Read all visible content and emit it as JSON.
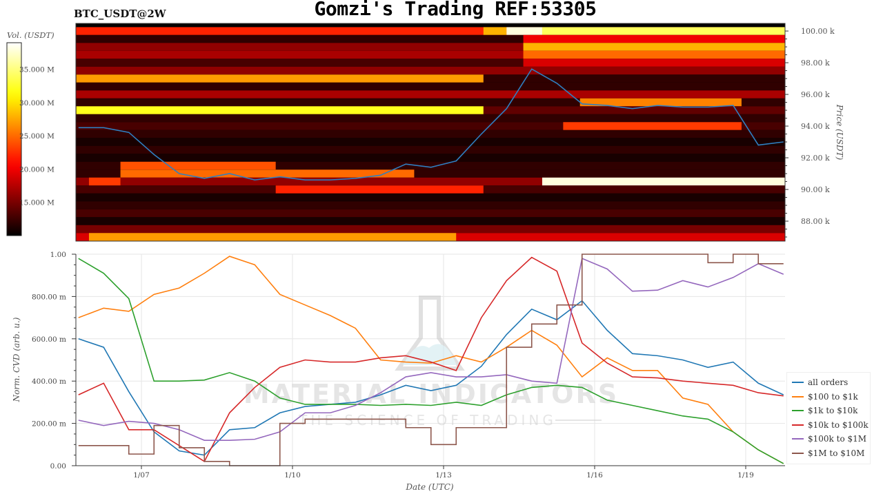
{
  "title": "Gomzi's Trading REF:53305",
  "subtitle": "BTC_USDT@2W",
  "watermark": {
    "line1": "MATERIAL INDICATORS",
    "line2": "THE SCIENCE OF TRADING"
  },
  "chart_data": [
    {
      "type": "heatmap",
      "name": "orderbook-liquidity-heatmap",
      "ylabel": "Price (USDT)",
      "colorbar_label": "Vol. (USDT)",
      "colormap": "hot",
      "color_range_M": [
        10,
        39
      ],
      "colorbar_ticks": [
        "15.000 M",
        "20.000 M",
        "25.000 M",
        "30.000 M",
        "35.000 M"
      ],
      "colorbar_tick_values_M": [
        15,
        20,
        25,
        30,
        35
      ],
      "y_ticks": [
        "88.00 k",
        "90.00 k",
        "92.00 k",
        "94.00 k",
        "96.00 k",
        "98.00 k",
        "100.00 k"
      ],
      "y_tick_values_k": [
        88,
        90,
        92,
        94,
        96,
        98,
        100
      ],
      "ylim_k": [
        86.74,
        100.48
      ],
      "xlim": [
        "01-05 17:00",
        "01-19 20:00"
      ],
      "row_step_k": 0.5,
      "rows": [
        {
          "price_k": 100.0,
          "default_M": 22,
          "segments": [
            [
              "01-13 19:00",
              "01-14 06:00",
              28
            ],
            [
              "01-14 06:00",
              "01-14 23:00",
              38
            ],
            [
              "01-14 23:00",
              "01-19 20:00",
              34
            ]
          ]
        },
        {
          "price_k": 99.5,
          "default_M": 12,
          "segments": [
            [
              "01-14 14:00",
              "01-19 20:00",
              20
            ]
          ]
        },
        {
          "price_k": 99.0,
          "default_M": 16,
          "segments": [
            [
              "01-14 14:00",
              "01-19 20:00",
              28
            ]
          ]
        },
        {
          "price_k": 98.5,
          "default_M": 17,
          "segments": [
            [
              "01-14 14:00",
              "01-19 20:00",
              25
            ]
          ]
        },
        {
          "price_k": 98.0,
          "default_M": 13,
          "segments": [
            [
              "01-14 14:00",
              "01-19 20:00",
              19
            ]
          ]
        },
        {
          "price_k": 97.5,
          "default_M": 16,
          "segments": []
        },
        {
          "price_k": 97.0,
          "default_M": 12,
          "segments": [
            [
              "01-05 17:00",
              "01-13 19:00",
              27
            ]
          ]
        },
        {
          "price_k": 96.5,
          "default_M": 12,
          "segments": []
        },
        {
          "price_k": 96.0,
          "default_M": 17,
          "segments": []
        },
        {
          "price_k": 95.5,
          "default_M": 12,
          "segments": [
            [
              "01-15 17:00",
              "01-18 22:00",
              26
            ]
          ]
        },
        {
          "price_k": 95.0,
          "default_M": 14,
          "segments": [
            [
              "01-05 17:00",
              "01-13 19:00",
              32
            ]
          ]
        },
        {
          "price_k": 94.5,
          "default_M": 12,
          "segments": []
        },
        {
          "price_k": 94.0,
          "default_M": 13,
          "segments": [
            [
              "01-15 09:00",
              "01-18 22:00",
              23
            ]
          ]
        },
        {
          "price_k": 93.5,
          "default_M": 12,
          "segments": []
        },
        {
          "price_k": 93.0,
          "default_M": 11,
          "segments": []
        },
        {
          "price_k": 92.5,
          "default_M": 12,
          "segments": []
        },
        {
          "price_k": 92.0,
          "default_M": 11,
          "segments": []
        },
        {
          "price_k": 91.5,
          "default_M": 12,
          "segments": [
            [
              "01-06 14:00",
              "01-09 16:00",
              24
            ]
          ]
        },
        {
          "price_k": 91.0,
          "default_M": 12,
          "segments": [
            [
              "01-06 14:00",
              "01-12 10:00",
              25
            ]
          ]
        },
        {
          "price_k": 90.5,
          "default_M": 16,
          "segments": [
            [
              "01-05 23:00",
              "01-06 14:00",
              23
            ],
            [
              "01-14 23:00",
              "01-19 20:00",
              38
            ]
          ]
        },
        {
          "price_k": 90.0,
          "default_M": 13,
          "segments": [
            [
              "01-09 16:00",
              "01-13 19:00",
              22
            ]
          ]
        },
        {
          "price_k": 89.5,
          "default_M": 11,
          "segments": []
        },
        {
          "price_k": 89.0,
          "default_M": 12,
          "segments": []
        },
        {
          "price_k": 88.5,
          "default_M": 13,
          "segments": []
        },
        {
          "price_k": 88.0,
          "default_M": 11,
          "segments": []
        },
        {
          "price_k": 87.5,
          "default_M": 15,
          "segments": []
        },
        {
          "price_k": 87.0,
          "default_M": 19,
          "segments": [
            [
              "01-05 23:00",
              "01-13 06:00",
              27
            ]
          ]
        }
      ],
      "price_series": {
        "color": "#2f7fc1",
        "x": [
          "01-05 18:00",
          "01-06 06:00",
          "01-06 18:00",
          "01-07 06:00",
          "01-07 18:00",
          "01-08 06:00",
          "01-08 18:00",
          "01-09 06:00",
          "01-09 18:00",
          "01-10 06:00",
          "01-10 18:00",
          "01-11 06:00",
          "01-11 18:00",
          "01-12 06:00",
          "01-12 18:00",
          "01-13 06:00",
          "01-13 18:00",
          "01-14 06:00",
          "01-14 18:00",
          "01-15 06:00",
          "01-15 18:00",
          "01-16 06:00",
          "01-16 18:00",
          "01-17 06:00",
          "01-17 18:00",
          "01-18 06:00",
          "01-18 18:00",
          "01-19 06:00",
          "01-19 18:00"
        ],
        "y_k": [
          93.9,
          93.9,
          93.6,
          92.2,
          91.0,
          90.7,
          91.0,
          90.6,
          90.8,
          90.6,
          90.6,
          90.7,
          90.9,
          91.6,
          91.4,
          91.8,
          93.5,
          95.1,
          97.6,
          96.7,
          95.4,
          95.3,
          95.1,
          95.3,
          95.2,
          95.2,
          95.3,
          92.8,
          93.0
        ]
      }
    },
    {
      "type": "line",
      "name": "normalized-cvd",
      "xlabel": "Date (UTC)",
      "ylabel": "Norm. CVD (arb. u.)",
      "ylim": [
        0,
        1
      ],
      "xlim": [
        "01-05 17:00",
        "01-19 20:00"
      ],
      "grid": true,
      "legend_placement": "right",
      "x_ticks": [
        "1/07",
        "1/10",
        "1/13",
        "1/16",
        "1/19"
      ],
      "x_tick_dates": [
        "01-07 00:00",
        "01-10 00:00",
        "01-13 00:00",
        "01-16 00:00",
        "01-19 00:00"
      ],
      "y_ticks": [
        "0.00",
        "200.00 m",
        "400.00 m",
        "600.00 m",
        "800.00 m",
        "1.00"
      ],
      "y_tick_values": [
        0,
        0.2,
        0.4,
        0.6,
        0.8,
        1.0
      ],
      "x": [
        "01-05 18:00",
        "01-06 06:00",
        "01-06 18:00",
        "01-07 06:00",
        "01-07 18:00",
        "01-08 06:00",
        "01-08 18:00",
        "01-09 06:00",
        "01-09 18:00",
        "01-10 06:00",
        "01-10 18:00",
        "01-11 06:00",
        "01-11 18:00",
        "01-12 06:00",
        "01-12 18:00",
        "01-13 06:00",
        "01-13 18:00",
        "01-14 06:00",
        "01-14 18:00",
        "01-15 06:00",
        "01-15 18:00",
        "01-16 06:00",
        "01-16 18:00",
        "01-17 06:00",
        "01-17 18:00",
        "01-18 06:00",
        "01-18 18:00",
        "01-19 06:00",
        "01-19 18:00"
      ],
      "series": [
        {
          "name": "all orders",
          "color": "#1f77b4",
          "step": false,
          "values": [
            0.6,
            0.56,
            0.35,
            0.16,
            0.07,
            0.05,
            0.17,
            0.18,
            0.25,
            0.28,
            0.29,
            0.3,
            0.335,
            0.38,
            0.355,
            0.38,
            0.47,
            0.62,
            0.74,
            0.69,
            0.78,
            0.64,
            0.53,
            0.52,
            0.5,
            0.465,
            0.49,
            0.39,
            0.335
          ]
        },
        {
          "name": "$100 to $1k",
          "color": "#ff7f0e",
          "step": false,
          "values": [
            0.7,
            0.745,
            0.73,
            0.81,
            0.84,
            0.91,
            0.99,
            0.95,
            0.81,
            0.76,
            0.71,
            0.65,
            0.5,
            0.49,
            0.485,
            0.52,
            0.49,
            0.56,
            0.64,
            0.57,
            0.42,
            0.51,
            0.45,
            0.45,
            0.32,
            0.29,
            0.16,
            0.075,
            0.01
          ]
        },
        {
          "name": "$1k to $10k",
          "color": "#2ca02c",
          "step": false,
          "values": [
            0.98,
            0.91,
            0.79,
            0.4,
            0.4,
            0.405,
            0.44,
            0.4,
            0.32,
            0.29,
            0.29,
            0.29,
            0.285,
            0.29,
            0.285,
            0.3,
            0.285,
            0.335,
            0.37,
            0.38,
            0.37,
            0.31,
            0.285,
            0.26,
            0.235,
            0.22,
            0.16,
            0.075,
            0.01
          ]
        },
        {
          "name": "$10k to $100k",
          "color": "#d62728",
          "step": false,
          "values": [
            0.335,
            0.39,
            0.17,
            0.17,
            0.095,
            0.02,
            0.25,
            0.37,
            0.465,
            0.5,
            0.49,
            0.49,
            0.51,
            0.52,
            0.49,
            0.45,
            0.7,
            0.875,
            0.985,
            0.92,
            0.58,
            0.485,
            0.42,
            0.415,
            0.4,
            0.39,
            0.38,
            0.345,
            0.33
          ]
        },
        {
          "name": "$100k to $1M",
          "color": "#9467bd",
          "step": false,
          "values": [
            0.215,
            0.19,
            0.21,
            0.2,
            0.17,
            0.12,
            0.12,
            0.125,
            0.16,
            0.25,
            0.25,
            0.285,
            0.345,
            0.42,
            0.44,
            0.42,
            0.42,
            0.43,
            0.4,
            0.39,
            0.98,
            0.93,
            0.825,
            0.83,
            0.875,
            0.845,
            0.89,
            0.955,
            0.905
          ]
        },
        {
          "name": "$1M to $10M",
          "color": "#8c564b",
          "step": true,
          "values": [
            0.095,
            0.095,
            0.055,
            0.19,
            0.085,
            0.02,
            0.0,
            0.0,
            0.2,
            0.22,
            0.22,
            0.22,
            0.22,
            0.18,
            0.1,
            0.18,
            0.18,
            0.56,
            0.67,
            0.76,
            1.0,
            1.0,
            1.0,
            1.0,
            1.0,
            0.96,
            1.0,
            0.955,
            0.955
          ]
        }
      ]
    }
  ]
}
